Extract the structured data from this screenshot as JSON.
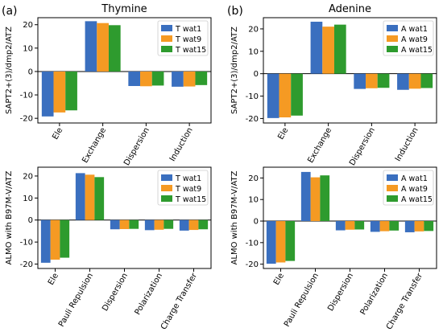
{
  "panel_labels": [
    "(a)",
    "(b)"
  ],
  "colors": {
    "series": [
      "#3a6fbf",
      "#f59a23",
      "#2e9b2e"
    ],
    "axis": "#000000"
  },
  "chart_data": [
    {
      "type": "bar",
      "title": "Thymine",
      "ylabel": "SAPT2+(3)/dmp2/ATZ",
      "categories": [
        "Ele",
        "Exchange",
        "Dispersion",
        "Induction"
      ],
      "ylim": [
        -22,
        23
      ],
      "yticks": [
        -20,
        -10,
        0,
        10,
        20
      ],
      "legend_position": "top-right",
      "series": [
        {
          "name": "T wat1",
          "values": [
            -19.2,
            21.5,
            -6.2,
            -6.5
          ]
        },
        {
          "name": "T wat9",
          "values": [
            -17.5,
            20.7,
            -6.3,
            -6.4
          ]
        },
        {
          "name": "T wat15",
          "values": [
            -16.6,
            19.8,
            -6.0,
            -5.8
          ]
        }
      ]
    },
    {
      "type": "bar",
      "title": "Adenine",
      "ylabel": "SAPT2+(3)/dmp2/ATZ",
      "categories": [
        "Ele",
        "Exchange",
        "Dispersion",
        "Induction"
      ],
      "ylim": [
        -22,
        25
      ],
      "yticks": [
        -20,
        -10,
        0,
        10,
        20
      ],
      "legend_position": "top-right",
      "series": [
        {
          "name": "A wat1",
          "values": [
            -19.8,
            23.2,
            -6.8,
            -7.2
          ]
        },
        {
          "name": "A wat9",
          "values": [
            -19.5,
            21.0,
            -6.5,
            -6.7
          ]
        },
        {
          "name": "A wat15",
          "values": [
            -18.7,
            21.9,
            -6.3,
            -6.4
          ]
        }
      ]
    },
    {
      "type": "bar",
      "title": "",
      "ylabel": "ALMO with B97M-V/ATZ",
      "categories": [
        "Ele",
        "Pauli Repulsion",
        "Dispersion",
        "Polarization",
        "Charge Transfer"
      ],
      "ylim": [
        -22,
        24
      ],
      "yticks": [
        -20,
        -10,
        0,
        10,
        20
      ],
      "legend_position": "top-right",
      "series": [
        {
          "name": "T wat1",
          "values": [
            -19.4,
            21.3,
            -4.2,
            -4.6,
            -4.8
          ]
        },
        {
          "name": "T wat9",
          "values": [
            -18.0,
            20.6,
            -4.1,
            -4.4,
            -4.5
          ]
        },
        {
          "name": "T wat15",
          "values": [
            -17.1,
            19.5,
            -4.0,
            -4.0,
            -4.2
          ]
        }
      ]
    },
    {
      "type": "bar",
      "title": "",
      "ylabel": "ALMO with B97M-V/ATZ",
      "categories": [
        "Ele",
        "Pauli Repulsion",
        "Dispersion",
        "Polarization",
        "Charge Transfer"
      ],
      "ylim": [
        -22,
        25
      ],
      "yticks": [
        -20,
        -10,
        0,
        10,
        20
      ],
      "legend_position": "top-right",
      "series": [
        {
          "name": "A wat1",
          "values": [
            -19.8,
            22.8,
            -4.3,
            -5.0,
            -5.2
          ]
        },
        {
          "name": "A wat9",
          "values": [
            -19.2,
            20.3,
            -4.0,
            -4.7,
            -4.8
          ]
        },
        {
          "name": "A wat15",
          "values": [
            -18.5,
            21.2,
            -3.9,
            -4.4,
            -4.6
          ]
        }
      ]
    }
  ]
}
